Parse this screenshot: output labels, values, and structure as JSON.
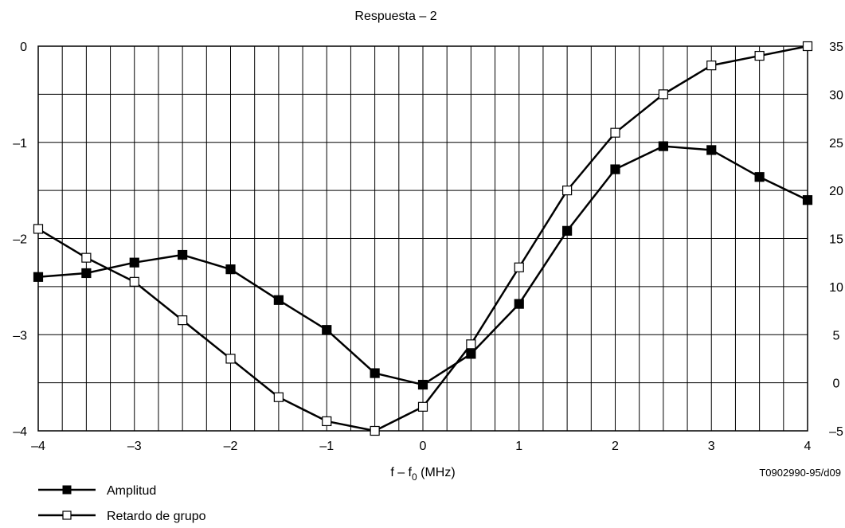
{
  "chart_data": {
    "type": "line",
    "title": "Respuesta – 2",
    "xlabel_main": "f – f",
    "xlabel_sub": "0",
    "xlabel_unit": " (MHz)",
    "ref_code": "T0902990-95/d09",
    "x": [
      -4,
      -3.5,
      -3,
      -2.5,
      -2,
      -1.5,
      -1,
      -0.5,
      0,
      0.5,
      1,
      1.5,
      2,
      2.5,
      3,
      3.5,
      4
    ],
    "xlim": [
      -4,
      4
    ],
    "x_ticks": [
      -4,
      -3,
      -2,
      -1,
      0,
      1,
      2,
      3,
      4
    ],
    "x_tick_labels": [
      "–4",
      "–3",
      "–2",
      "–1",
      "0",
      "1",
      "2",
      "3",
      "4"
    ],
    "ylim_left": [
      -4,
      0
    ],
    "y_left_ticks": [
      0,
      -1,
      -2,
      -3,
      -4
    ],
    "y_left_tick_labels": [
      "0",
      "–1",
      "–2",
      "–3",
      "–4"
    ],
    "ylim_right": [
      -5,
      35
    ],
    "y_right_ticks": [
      35,
      30,
      25,
      20,
      15,
      10,
      5,
      0,
      -5
    ],
    "y_right_tick_labels": [
      "35",
      "30",
      "25",
      "20",
      "15",
      "10",
      "5",
      "0",
      "–5"
    ],
    "grid": true,
    "legend_position": "bottom-left",
    "series": [
      {
        "name": "Amplitud",
        "axis": "left",
        "marker": "filled-square",
        "values": [
          -2.4,
          -2.36,
          -2.25,
          -2.17,
          -2.32,
          -2.64,
          -2.95,
          -3.4,
          -3.52,
          -3.2,
          -2.68,
          -1.92,
          -1.28,
          -1.04,
          -1.08,
          -1.36,
          -1.6
        ]
      },
      {
        "name": "Retardo de grupo",
        "axis": "right",
        "marker": "open-square",
        "values": [
          16,
          13,
          10.5,
          6.5,
          2.5,
          -1.5,
          -4,
          -5,
          -2.5,
          4,
          12,
          20,
          26,
          30,
          33,
          34,
          35
        ]
      }
    ]
  }
}
